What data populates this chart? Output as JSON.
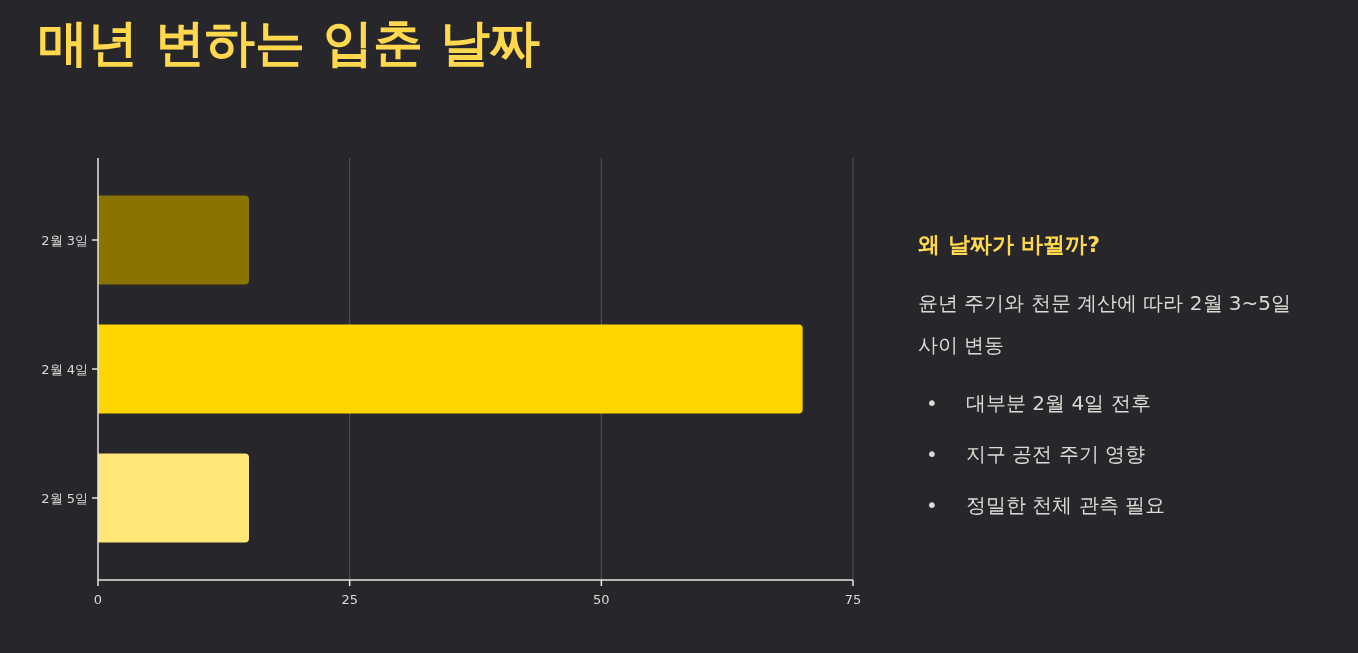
{
  "chart_data": {
    "type": "bar",
    "orientation": "horizontal",
    "title": "매년 변하는 입춘 날짜",
    "categories": [
      "2월 3일",
      "2월 4일",
      "2월 5일"
    ],
    "values": [
      15,
      70,
      15
    ],
    "colors": [
      "#8b7300",
      "#ffd500",
      "#ffe677"
    ],
    "xlim": [
      0,
      75
    ],
    "xticks": [
      0,
      25,
      50,
      75
    ],
    "grid": "x",
    "annotations": [
      "왜 날짜가 바뀔까?",
      "윤년 주기와 천문 계산에 따라 2월 3~5일 사이 변동",
      "• 대부분 2월 4일 전후",
      "• 지구 공전 주기 영향",
      "• 정밀한 천체 관측 필요"
    ]
  }
}
